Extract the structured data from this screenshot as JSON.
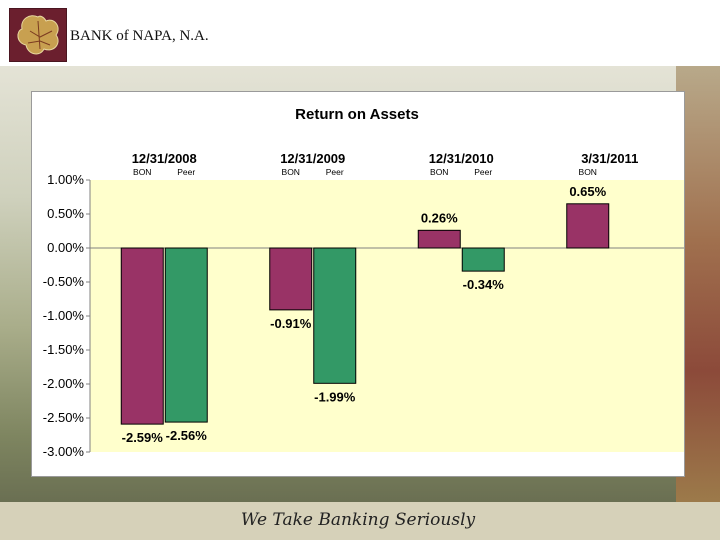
{
  "header": {
    "bank_name": "BANK of NAPA, N.A."
  },
  "footer": {
    "tagline": "We Take Banking Seriously"
  },
  "chart_data": {
    "type": "bar",
    "title": "Return on Assets",
    "categories": [
      "12/31/2008",
      "12/31/2009",
      "12/31/2010",
      "3/31/2011"
    ],
    "series": [
      {
        "name": "BON",
        "values": [
          -2.59,
          -0.91,
          0.26,
          0.65
        ],
        "labels": [
          "-2.59%",
          "-0.91%",
          "0.26%",
          "0.65%"
        ],
        "color": "#993366"
      },
      {
        "name": "Peer",
        "values": [
          -2.56,
          -1.99,
          -0.34,
          null
        ],
        "labels": [
          "-2.56%",
          "-1.99%",
          "-0.34%",
          ""
        ],
        "color": "#339966"
      }
    ],
    "yticks": [
      "1.00%",
      "0.50%",
      "0.00%",
      "-0.50%",
      "-1.00%",
      "-1.50%",
      "-2.00%",
      "-2.50%",
      "-3.00%"
    ],
    "ylim": [
      -3.0,
      1.0
    ],
    "plot_background": "#ffffcc",
    "legend": "per-group labels above bars",
    "grid": false
  }
}
